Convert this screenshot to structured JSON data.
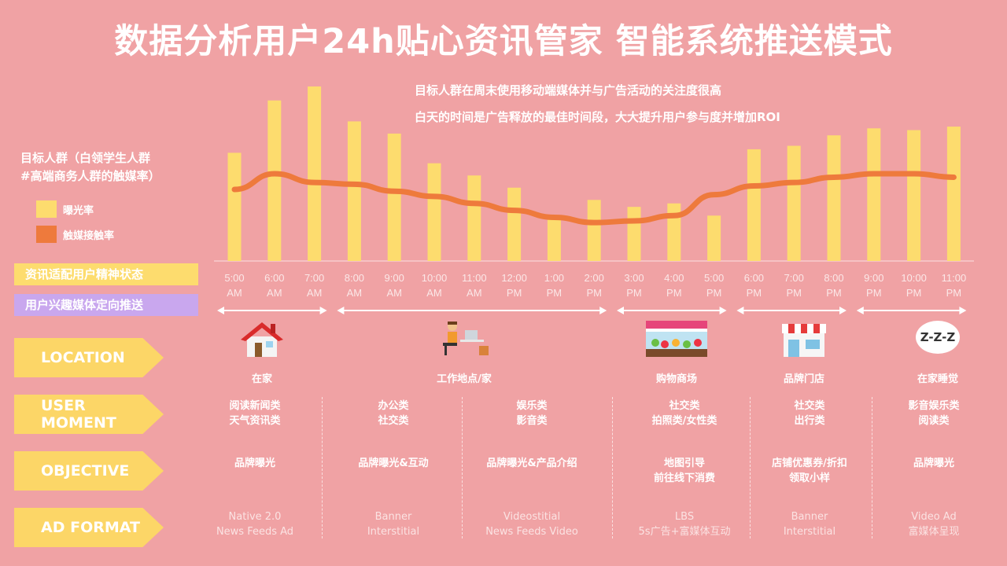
{
  "title": "数据分析用户24h贴心资讯管家 智能系统推送模式",
  "subtitle_1": "目标人群在周末使用移动端媒体并与广告活动的关注度很高",
  "subtitle_2": "白天的时间是广告释放的最佳时间段，大大提升用户参与度并增加ROI",
  "target": {
    "line1": "目标人群（白领学生人群",
    "line2": "#高端商务人群的触媒率）"
  },
  "legend": {
    "exposure": "曝光率",
    "contact": "触媒接触率"
  },
  "colors": {
    "background": "#f0a2a4",
    "bar": "#fddc6e",
    "line": "#ee7a3c",
    "tag_yellow": "#fddc6e",
    "tag_purple": "#c9a7ee"
  },
  "tags": {
    "state": "资讯适配用户精神状态",
    "interest": "用户兴趣媒体定向推送"
  },
  "row_labels": {
    "location": "LOCATION",
    "moment": "USER MOMENT",
    "objective": "OBJECTIVE",
    "format": "AD FORMAT"
  },
  "chart_data": {
    "type": "bar",
    "categories": [
      "5:00 AM",
      "6:00 AM",
      "7:00 AM",
      "8:00 AM",
      "9:00 AM",
      "10:00 AM",
      "11:00 AM",
      "12:00 PM",
      "1:00 PM",
      "2:00 PM",
      "3:00 PM",
      "4:00 PM",
      "5:00 PM",
      "6:00 PM",
      "7:00 PM",
      "8:00 PM",
      "9:00 PM",
      "10:00 PM",
      "11:00 PM"
    ],
    "category_lines": [
      [
        "5:00",
        "AM"
      ],
      [
        "6:00",
        "AM"
      ],
      [
        "7:00",
        "AM"
      ],
      [
        "8:00",
        "AM"
      ],
      [
        "9:00",
        "AM"
      ],
      [
        "10:00",
        "AM"
      ],
      [
        "11:00",
        "AM"
      ],
      [
        "12:00",
        "PM"
      ],
      [
        "1:00",
        "PM"
      ],
      [
        "2:00",
        "PM"
      ],
      [
        "3:00",
        "PM"
      ],
      [
        "4:00",
        "PM"
      ],
      [
        "5:00",
        "PM"
      ],
      [
        "6:00",
        "PM"
      ],
      [
        "7:00",
        "PM"
      ],
      [
        "8:00",
        "PM"
      ],
      [
        "9:00",
        "PM"
      ],
      [
        "10:00",
        "PM"
      ],
      [
        "11:00",
        "PM"
      ]
    ],
    "series": [
      {
        "name": "曝光率",
        "type": "bar",
        "values": [
          62,
          92,
          100,
          80,
          73,
          56,
          49,
          42,
          24,
          35,
          31,
          33,
          26,
          64,
          66,
          72,
          76,
          75,
          77
        ]
      },
      {
        "name": "触媒接触率",
        "type": "line",
        "values": [
          41,
          50,
          45,
          44,
          40,
          37,
          33,
          29,
          25,
          22,
          23,
          26,
          38,
          43,
          45,
          48,
          50,
          50,
          48
        ]
      }
    ],
    "ylim": [
      0,
      100
    ]
  },
  "time_spans": [
    {
      "from": 0,
      "to": 2
    },
    {
      "from": 3,
      "to": 9
    },
    {
      "from": 10,
      "to": 12
    },
    {
      "from": 13,
      "to": 15
    },
    {
      "from": 16,
      "to": 18
    }
  ],
  "locations": [
    {
      "label": "在家",
      "icon": "house-icon"
    },
    {
      "label": "工作地点/家",
      "icon": "office-worker-icon"
    },
    {
      "label": "购物商场",
      "icon": "market-stall-icon"
    },
    {
      "label": "品牌门店",
      "icon": "storefront-icon"
    },
    {
      "label": "在家睡觉",
      "icon": "sleep-zzz-icon",
      "icon_text": "Z-Z-Z"
    }
  ],
  "columns": [
    {
      "moment": [
        "阅读新闻类",
        "天气资讯类"
      ],
      "objective": [
        "品牌曝光"
      ],
      "format": [
        "Native 2.0",
        "News Feeds Ad"
      ]
    },
    {
      "moment": [
        "办公类",
        "社交类"
      ],
      "objective": [
        "品牌曝光&互动"
      ],
      "format": [
        "Banner",
        "Interstitial"
      ]
    },
    {
      "moment": [
        "娱乐类",
        "影音类"
      ],
      "objective": [
        "品牌曝光&产品介绍"
      ],
      "format": [
        "Videostitial",
        "News Feeds Video"
      ]
    },
    {
      "moment": [
        "社交类",
        "拍照类/女性类"
      ],
      "objective": [
        "地图引导",
        "前往线下消费"
      ],
      "format": [
        "LBS",
        "5s广告+富媒体互动"
      ]
    },
    {
      "moment": [
        "社交类",
        "出行类"
      ],
      "objective": [
        "店铺优惠券/折扣",
        "领取小样"
      ],
      "format": [
        "Banner",
        "Interstitial"
      ]
    },
    {
      "moment": [
        "影音娱乐类",
        "阅读类"
      ],
      "objective": [
        "品牌曝光"
      ],
      "format": [
        "Video Ad",
        "富媒体呈现"
      ]
    }
  ]
}
